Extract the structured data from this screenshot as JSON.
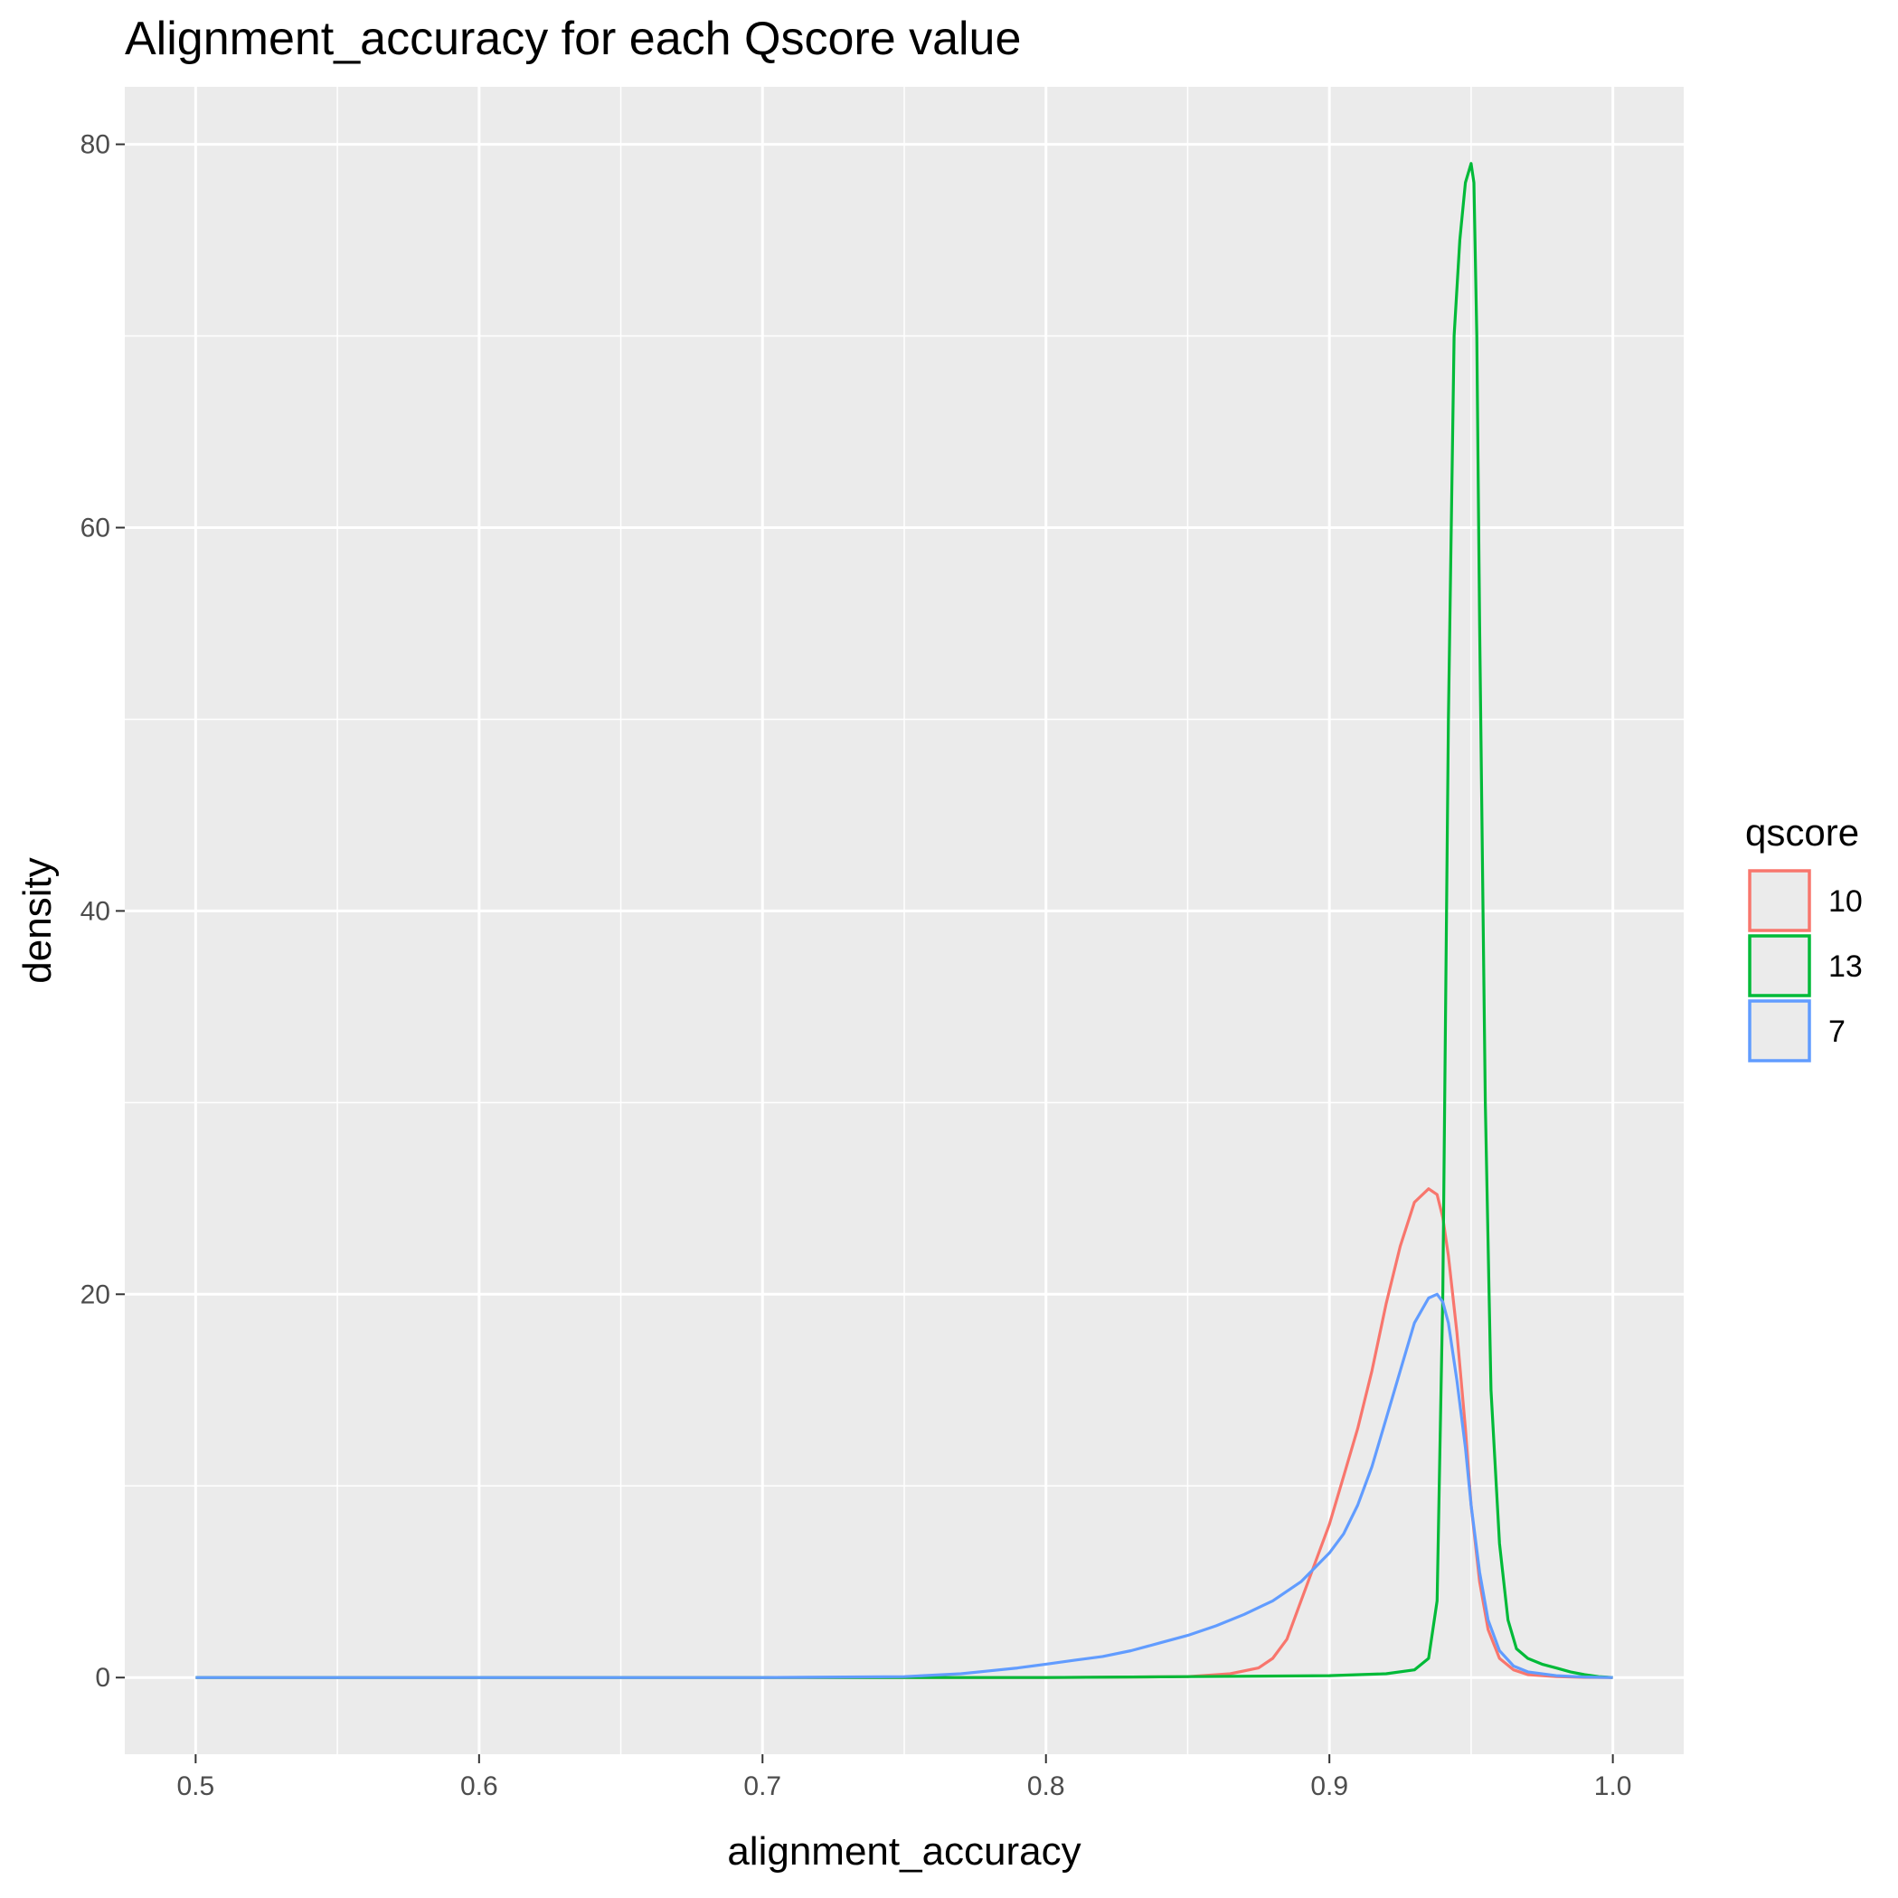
{
  "chart_data": {
    "type": "line",
    "title": "Alignment_accuracy for each Qscore value",
    "xlabel": "alignment_accuracy",
    "ylabel": "density",
    "xlim": [
      0.475,
      1.025
    ],
    "ylim": [
      -4,
      83
    ],
    "x_ticks": [
      0.5,
      0.6,
      0.7,
      0.8,
      0.9,
      1.0
    ],
    "x_tick_labels": [
      "0.5",
      "0.6",
      "0.7",
      "0.8",
      "0.9",
      "1.0"
    ],
    "y_ticks": [
      0,
      20,
      40,
      60,
      80
    ],
    "y_tick_labels": [
      "0",
      "20",
      "40",
      "60",
      "80"
    ],
    "grid": true,
    "legend": {
      "title": "qscore",
      "position": "right"
    },
    "series": [
      {
        "name": "10",
        "color": "#F8766D",
        "x": [
          0.5,
          0.7,
          0.8,
          0.85,
          0.865,
          0.875,
          0.88,
          0.885,
          0.89,
          0.895,
          0.9,
          0.905,
          0.91,
          0.915,
          0.92,
          0.925,
          0.93,
          0.935,
          0.938,
          0.94,
          0.942,
          0.945,
          0.948,
          0.95,
          0.953,
          0.956,
          0.96,
          0.965,
          0.97,
          0.98,
          0.99,
          1.0
        ],
        "values": [
          0,
          0,
          0,
          0.05,
          0.2,
          0.5,
          1.0,
          2.0,
          4.0,
          6.0,
          8.0,
          10.5,
          13.0,
          16.0,
          19.5,
          22.5,
          24.8,
          25.5,
          25.2,
          24.0,
          22.0,
          18.0,
          13.0,
          9.0,
          5.0,
          2.5,
          1.0,
          0.4,
          0.15,
          0.05,
          0.01,
          0
        ]
      },
      {
        "name": "13",
        "color": "#00BA38",
        "x": [
          0.5,
          0.8,
          0.85,
          0.9,
          0.92,
          0.93,
          0.935,
          0.938,
          0.94,
          0.942,
          0.944,
          0.946,
          0.948,
          0.95,
          0.951,
          0.952,
          0.953,
          0.955,
          0.957,
          0.96,
          0.963,
          0.966,
          0.97,
          0.975,
          0.98,
          0.985,
          0.99,
          0.995,
          1.0
        ],
        "values": [
          0,
          0,
          0.05,
          0.1,
          0.2,
          0.4,
          1.0,
          4.0,
          20.0,
          50.0,
          70.0,
          75.0,
          78.0,
          79.0,
          78.0,
          70.0,
          55.0,
          30.0,
          15.0,
          7.0,
          3.0,
          1.5,
          1.0,
          0.7,
          0.5,
          0.3,
          0.15,
          0.05,
          0
        ]
      },
      {
        "name": "7",
        "color": "#619CFF",
        "x": [
          0.5,
          0.7,
          0.75,
          0.77,
          0.78,
          0.79,
          0.8,
          0.81,
          0.82,
          0.83,
          0.84,
          0.85,
          0.86,
          0.87,
          0.88,
          0.89,
          0.9,
          0.905,
          0.91,
          0.915,
          0.92,
          0.925,
          0.93,
          0.935,
          0.938,
          0.94,
          0.942,
          0.945,
          0.948,
          0.95,
          0.953,
          0.956,
          0.96,
          0.965,
          0.97,
          0.98,
          0.99,
          1.0
        ],
        "values": [
          0,
          0,
          0.05,
          0.2,
          0.35,
          0.5,
          0.7,
          0.9,
          1.1,
          1.4,
          1.8,
          2.2,
          2.7,
          3.3,
          4.0,
          5.0,
          6.5,
          7.5,
          9.0,
          11.0,
          13.5,
          16.0,
          18.5,
          19.8,
          20.0,
          19.6,
          18.5,
          15.5,
          12.0,
          9.0,
          5.5,
          3.0,
          1.4,
          0.6,
          0.3,
          0.1,
          0.03,
          0
        ]
      }
    ]
  }
}
